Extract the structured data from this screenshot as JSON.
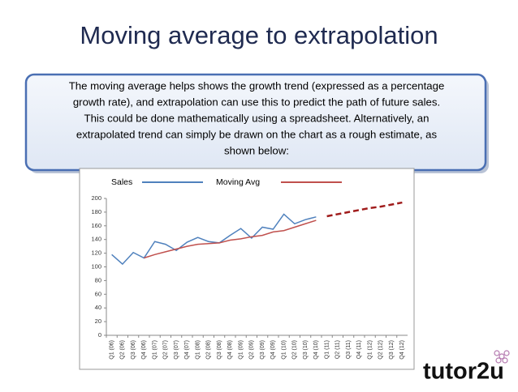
{
  "slide": {
    "title": "Moving average to extrapolation",
    "text_lines": [
      "The moving average helps shows the growth trend (expressed as a percentage",
      "growth rate), and extrapolation can use this to predict the path of future sales.",
      "This could be done mathematically using a spreadsheet. Alternatively, an",
      "extrapolated trend can simply be drawn on the chart as a rough estimate, as",
      "shown below:"
    ],
    "logo": "tutor2u"
  },
  "chart_data": {
    "type": "line",
    "categories": [
      "Q1 (06)",
      "Q2 (06)",
      "Q3 (06)",
      "Q4 (06)",
      "Q1 (07)",
      "Q2 (07)",
      "Q3 (07)",
      "Q4 (07)",
      "Q1 (08)",
      "Q2 (08)",
      "Q3 (08)",
      "Q4 (08)",
      "Q1 (09)",
      "Q2 (09)",
      "Q3 (09)",
      "Q4 (09)",
      "Q1 (10)",
      "Q2 (10)",
      "Q3 (10)",
      "Q4 (10)",
      "Q1 (11)",
      "Q2 (11)",
      "Q3 (11)",
      "Q4 (11)",
      "Q1 (12)",
      "Q2 (12)",
      "Q3 (12)",
      "Q4 (12)"
    ],
    "series": [
      {
        "name": "Sales",
        "color": "#4f81bd",
        "values": [
          118,
          104,
          121,
          113,
          137,
          133,
          124,
          136,
          143,
          137,
          135,
          146,
          156,
          142,
          158,
          155,
          177,
          163,
          169,
          173,
          null,
          null,
          null,
          null,
          null,
          null,
          null,
          null
        ]
      },
      {
        "name": "Moving Avg",
        "color": "#c0504d",
        "values": [
          null,
          null,
          null,
          113,
          118,
          122,
          126,
          130,
          133,
          134,
          135,
          139,
          141,
          144,
          146,
          151,
          153,
          158,
          163,
          168,
          null,
          null,
          null,
          null,
          null,
          null,
          null,
          null
        ]
      }
    ],
    "extrapolation": {
      "color": "#a01c1c",
      "values": [
        null,
        null,
        null,
        null,
        null,
        null,
        null,
        null,
        null,
        null,
        null,
        null,
        null,
        null,
        null,
        null,
        null,
        null,
        null,
        null,
        174,
        177,
        180,
        183,
        186,
        188,
        191,
        194
      ]
    },
    "ylim": [
      0,
      200
    ],
    "yticks": [
      0,
      20,
      40,
      60,
      80,
      100,
      120,
      140,
      160,
      180,
      200
    ]
  }
}
